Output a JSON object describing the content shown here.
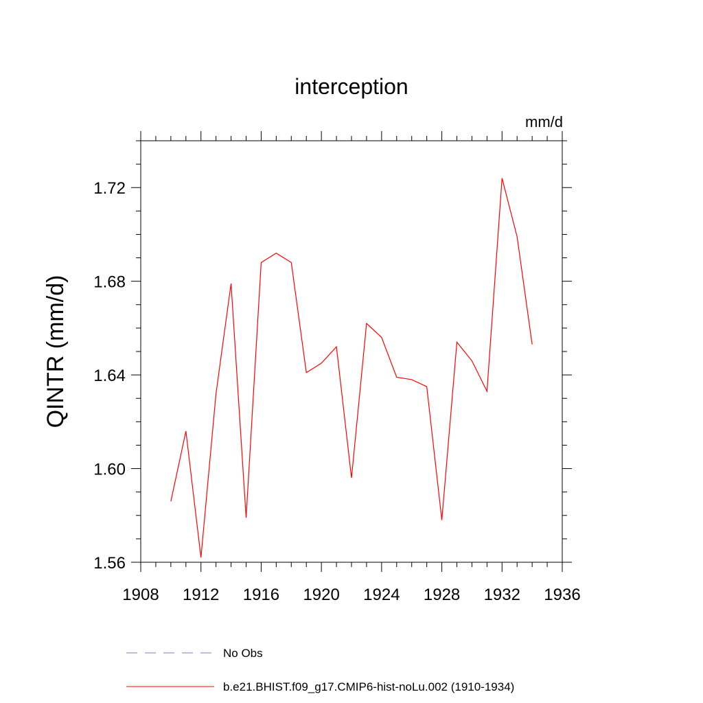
{
  "chart_data": {
    "type": "line",
    "title": "interception",
    "units_label": "mm/d",
    "xlabel": "",
    "ylabel": "QINTR  (mm/d)",
    "xlim": [
      1908,
      1936
    ],
    "ylim": [
      1.56,
      1.74
    ],
    "x_ticks": [
      "1908",
      "1912",
      "1916",
      "1920",
      "1924",
      "1928",
      "1932",
      "1936"
    ],
    "y_ticks": [
      "1.56",
      "1.60",
      "1.64",
      "1.68",
      "1.72"
    ],
    "legend": [
      {
        "label": "No Obs",
        "color": "#7b7bc8",
        "style": "dashed"
      },
      {
        "label": "b.e21.BHIST.f09_g17.CMIP6-hist-noLu.002 (1910-1934)",
        "color": "#ff0000",
        "style": "solid"
      }
    ],
    "series": [
      {
        "name": "b.e21.BHIST.f09_g17.CMIP6-hist-noLu.002 (1910-1934)",
        "color": "#ff0000",
        "x": [
          1910,
          1911,
          1912,
          1913,
          1914,
          1915,
          1916,
          1917,
          1918,
          1919,
          1920,
          1921,
          1922,
          1923,
          1924,
          1925,
          1926,
          1927,
          1928,
          1929,
          1930,
          1931,
          1932,
          1933,
          1934
        ],
        "y": [
          1.586,
          1.616,
          1.562,
          1.632,
          1.679,
          1.579,
          1.688,
          1.692,
          1.688,
          1.641,
          1.645,
          1.652,
          1.596,
          1.662,
          1.656,
          1.639,
          1.638,
          1.635,
          1.578,
          1.654,
          1.646,
          1.633,
          1.724,
          1.699,
          1.653
        ]
      }
    ]
  }
}
